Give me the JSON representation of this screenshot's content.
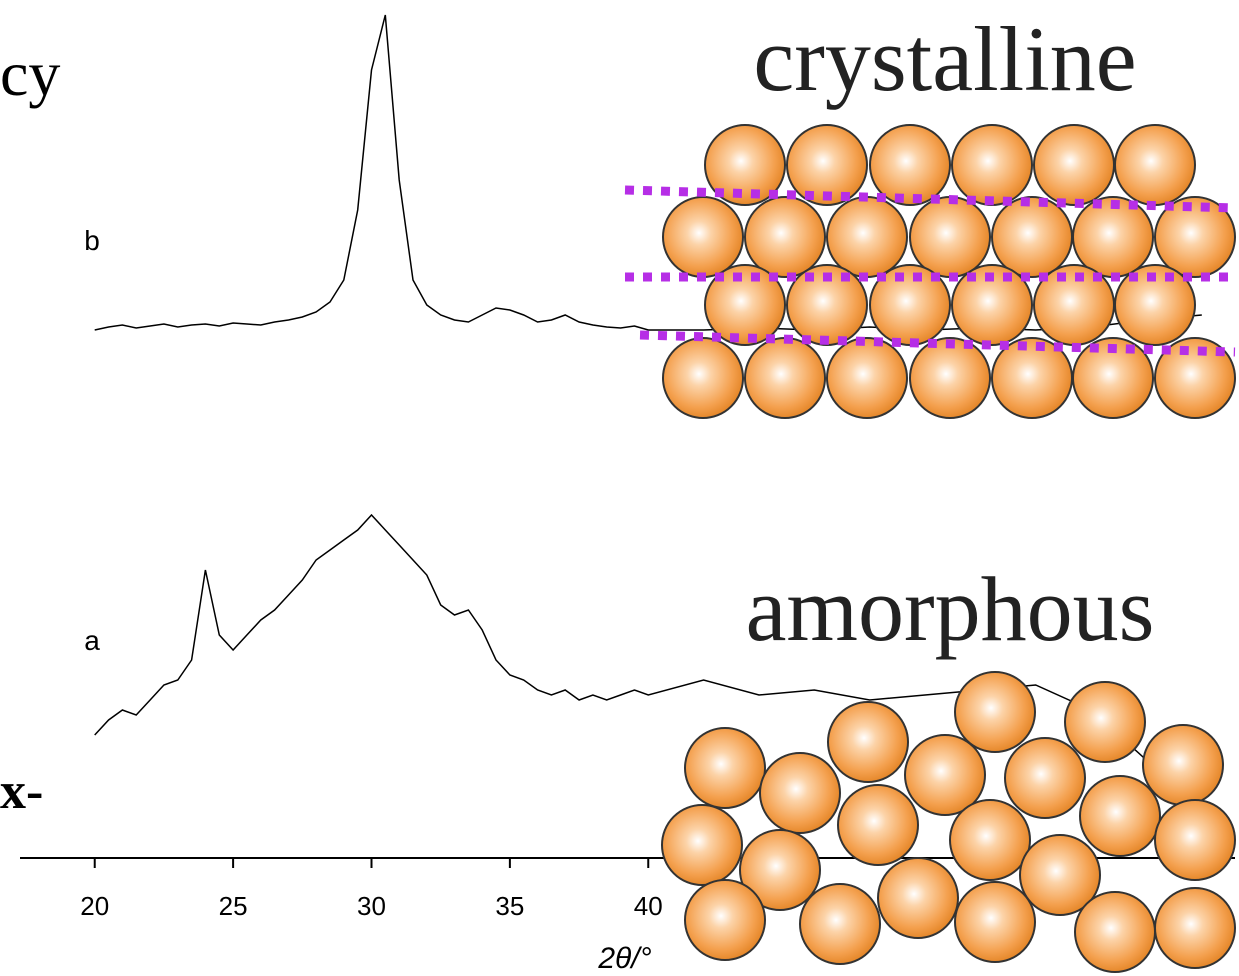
{
  "chart_data": {
    "type": "line",
    "annotations": {
      "top_left": "cy",
      "left": "x-",
      "crystalline": "crystalline",
      "amorphous": "amorphous"
    },
    "x_label": "2θ/°",
    "x": [
      20,
      20.5,
      21,
      21.5,
      22,
      22.5,
      23,
      23.5,
      24,
      24.5,
      25,
      25.5,
      26,
      26.5,
      27,
      27.5,
      28,
      28.5,
      29,
      29.5,
      30,
      30.5,
      31,
      31.5,
      32,
      32.5,
      33,
      33.5,
      34,
      34.5,
      35,
      35.5,
      36,
      36.5,
      37,
      37.5,
      38,
      38.5,
      39,
      39.5,
      40,
      42,
      44,
      46,
      48,
      50,
      52,
      54,
      56,
      58,
      60
    ],
    "series": [
      {
        "name": "b",
        "color": "#000000",
        "values": [
          530,
          533,
          535,
          532,
          534,
          536,
          533,
          535,
          536,
          534,
          537,
          536,
          535,
          538,
          540,
          543,
          548,
          558,
          580,
          650,
          790,
          845,
          680,
          580,
          555,
          545,
          540,
          538,
          545,
          552,
          550,
          545,
          538,
          540,
          545,
          538,
          535,
          533,
          532,
          534,
          530,
          530,
          532,
          530,
          533,
          530,
          532,
          530,
          533,
          540,
          545
        ]
      },
      {
        "name": "a",
        "color": "#000000",
        "values": [
          125,
          140,
          150,
          145,
          160,
          175,
          180,
          200,
          290,
          225,
          210,
          225,
          240,
          250,
          265,
          280,
          300,
          310,
          320,
          330,
          345,
          330,
          315,
          300,
          285,
          255,
          245,
          250,
          230,
          200,
          185,
          180,
          170,
          165,
          170,
          160,
          165,
          160,
          165,
          170,
          165,
          180,
          165,
          170,
          160,
          165,
          170,
          175,
          150,
          100,
          null
        ]
      }
    ],
    "xlim": [
      17.3,
      61.2
    ],
    "xticks": [
      20,
      25,
      30,
      35,
      40
    ],
    "ylim": [
      0,
      860
    ]
  }
}
